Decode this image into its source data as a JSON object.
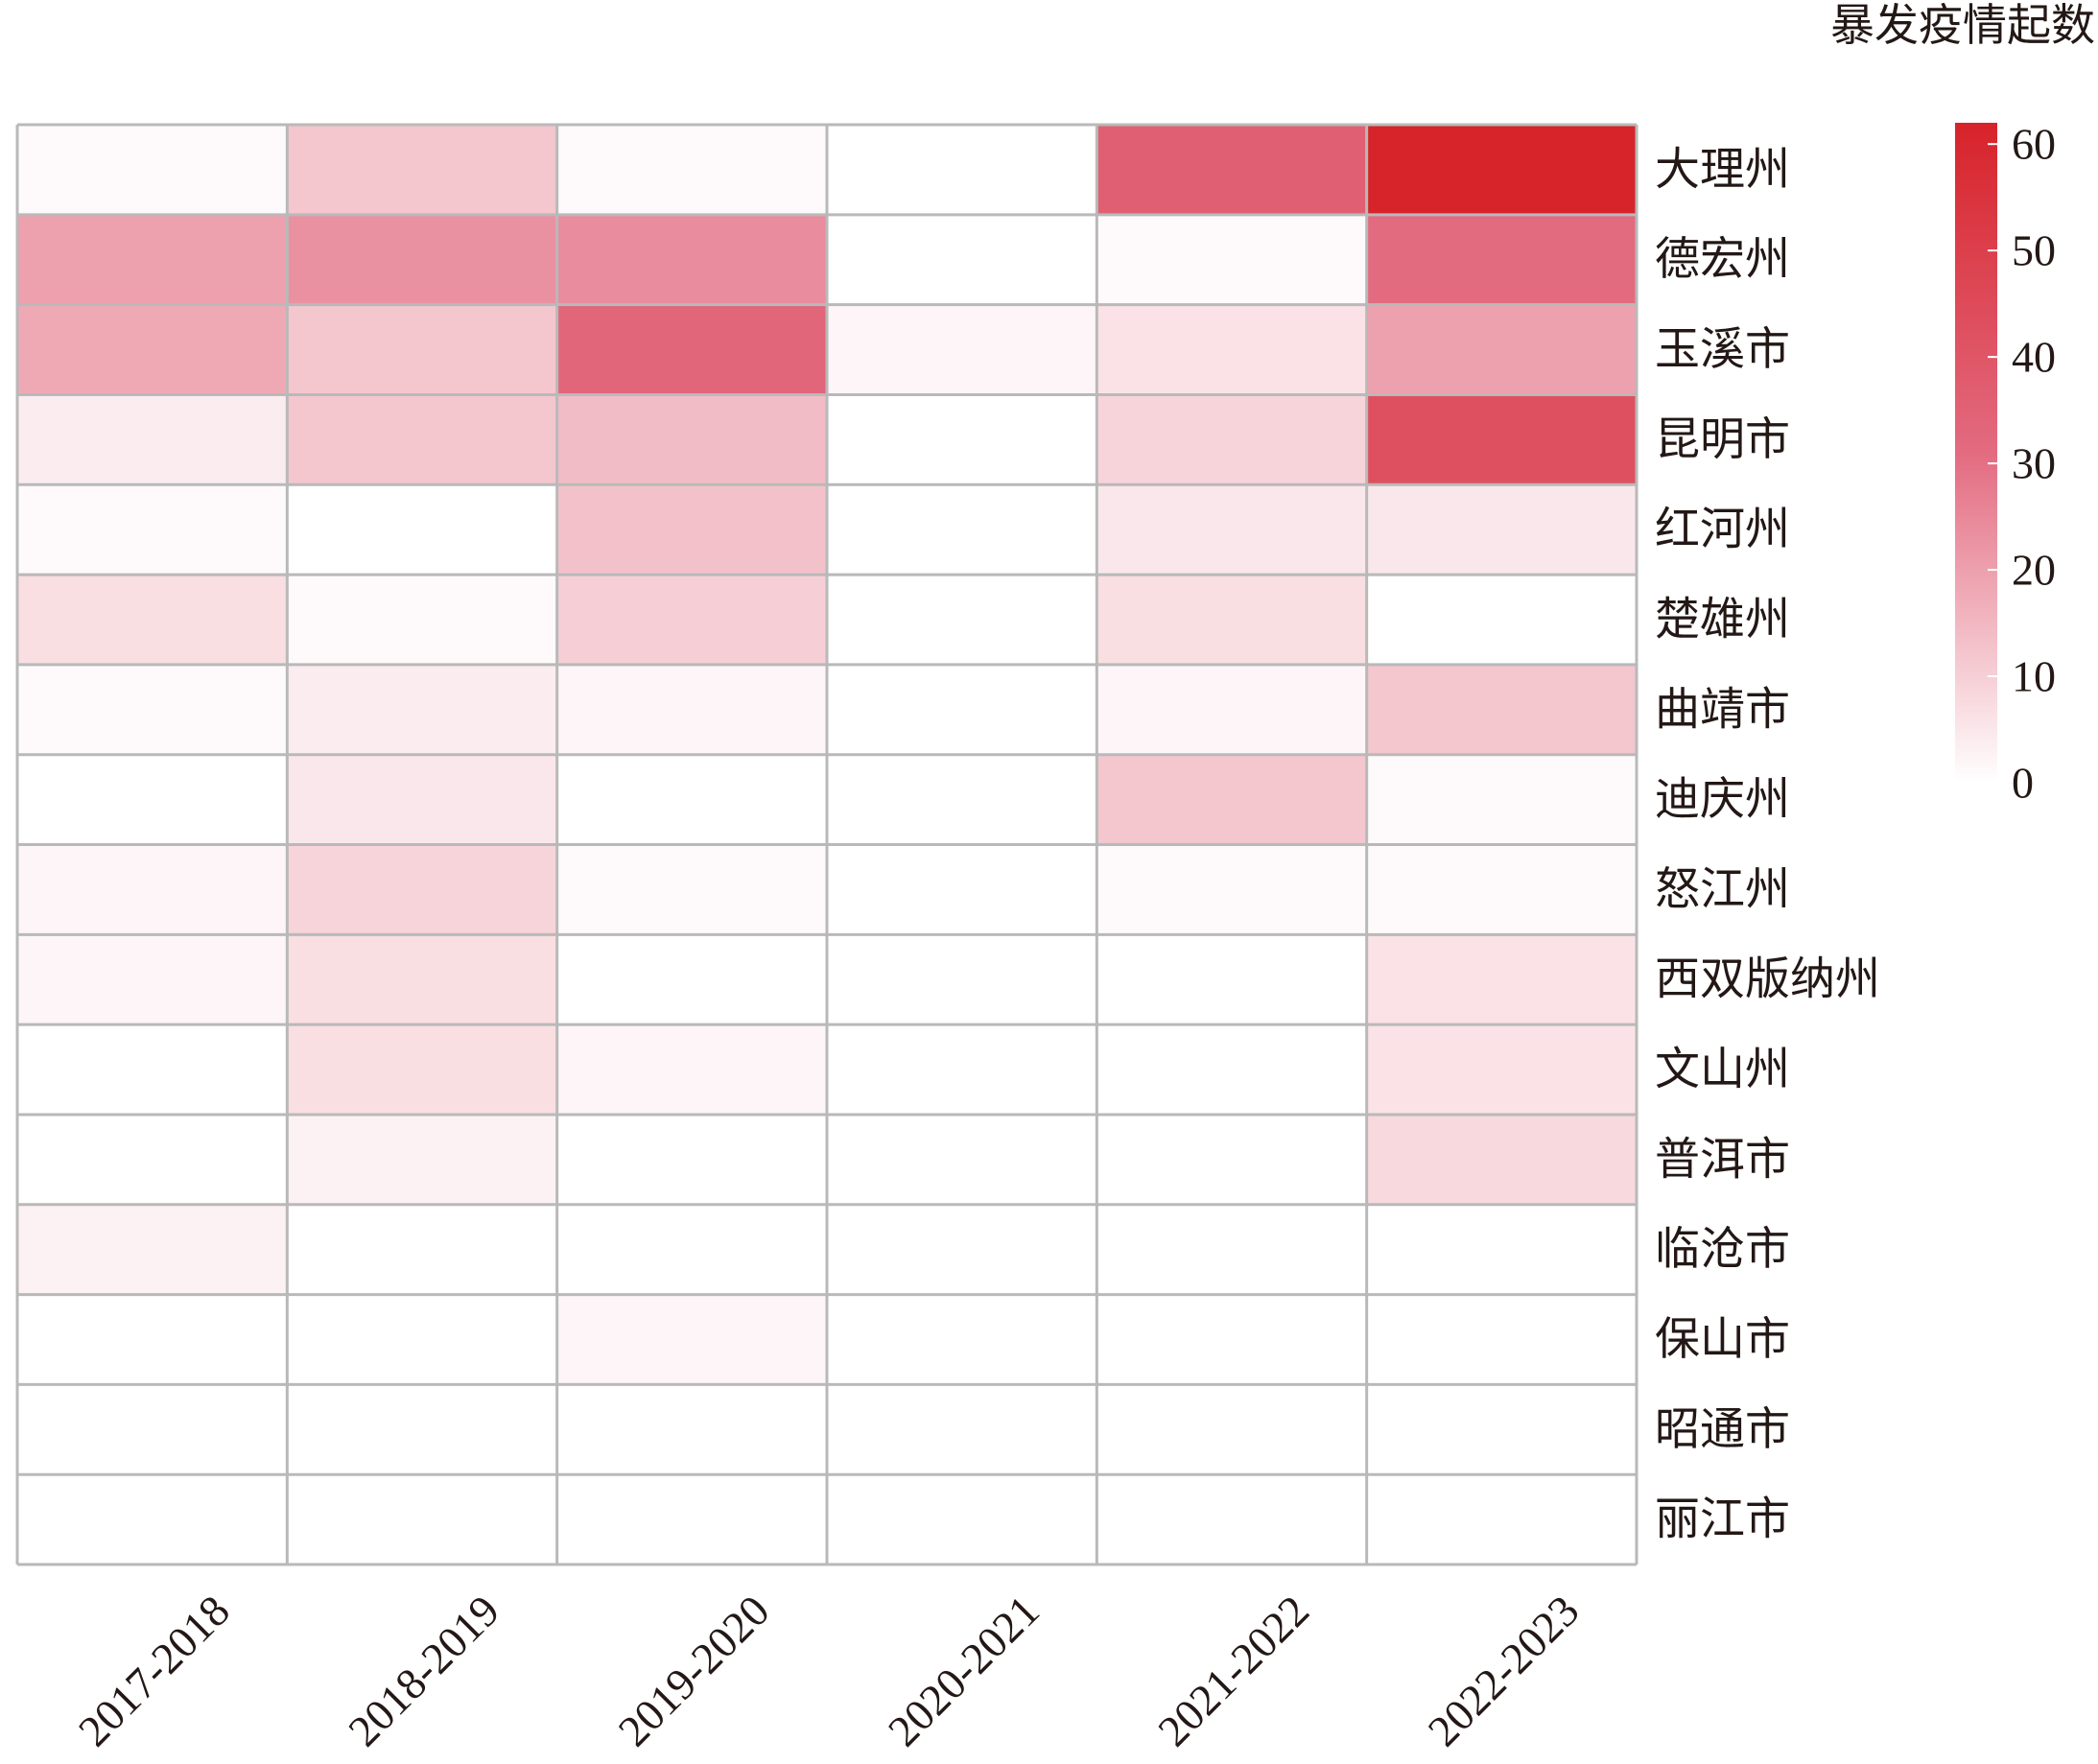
{
  "chart_data": {
    "type": "heatmap",
    "x_categories": [
      "2017-2018",
      "2018-2019",
      "2019-2020",
      "2020-2021",
      "2021-2022",
      "2022-2023"
    ],
    "y_categories": [
      "大理州",
      "德宏州",
      "玉溪市",
      "昆明市",
      "红河州",
      "楚雄州",
      "曲靖市",
      "迪庆州",
      "怒江州",
      "西双版纳州",
      "文山州",
      "普洱市",
      "临沧市",
      "保山市",
      "昭通市",
      "丽江市"
    ],
    "values": [
      [
        1,
        12,
        1,
        0,
        36,
        62
      ],
      [
        20,
        23,
        24,
        0,
        1,
        31
      ],
      [
        18,
        12,
        33,
        2,
        6,
        20
      ],
      [
        4,
        12,
        14,
        0,
        9,
        43
      ],
      [
        1,
        0,
        13,
        0,
        5,
        5
      ],
      [
        7,
        1,
        10,
        0,
        7,
        0
      ],
      [
        1,
        4,
        2,
        0,
        2,
        12
      ],
      [
        0,
        5,
        0,
        0,
        12,
        1
      ],
      [
        2,
        9,
        1,
        0,
        1,
        1
      ],
      [
        2,
        7,
        0,
        0,
        0,
        6
      ],
      [
        0,
        7,
        2,
        0,
        0,
        6
      ],
      [
        0,
        3,
        0,
        0,
        0,
        8
      ],
      [
        3,
        0,
        0,
        0,
        0,
        0
      ],
      [
        0,
        0,
        2,
        0,
        0,
        0
      ],
      [
        0,
        0,
        0,
        0,
        0,
        0
      ],
      [
        0,
        0,
        0,
        0,
        0,
        0
      ]
    ],
    "colorbar": {
      "title": "暴发疫情起数",
      "ticks": [
        0,
        10,
        20,
        30,
        40,
        50,
        60
      ],
      "range": [
        0,
        62
      ],
      "color_low": "#ffffff",
      "color_mid": "#e36b80",
      "color_high": "#d7232a"
    },
    "grid": true,
    "grid_color": "#b9b9b9"
  }
}
